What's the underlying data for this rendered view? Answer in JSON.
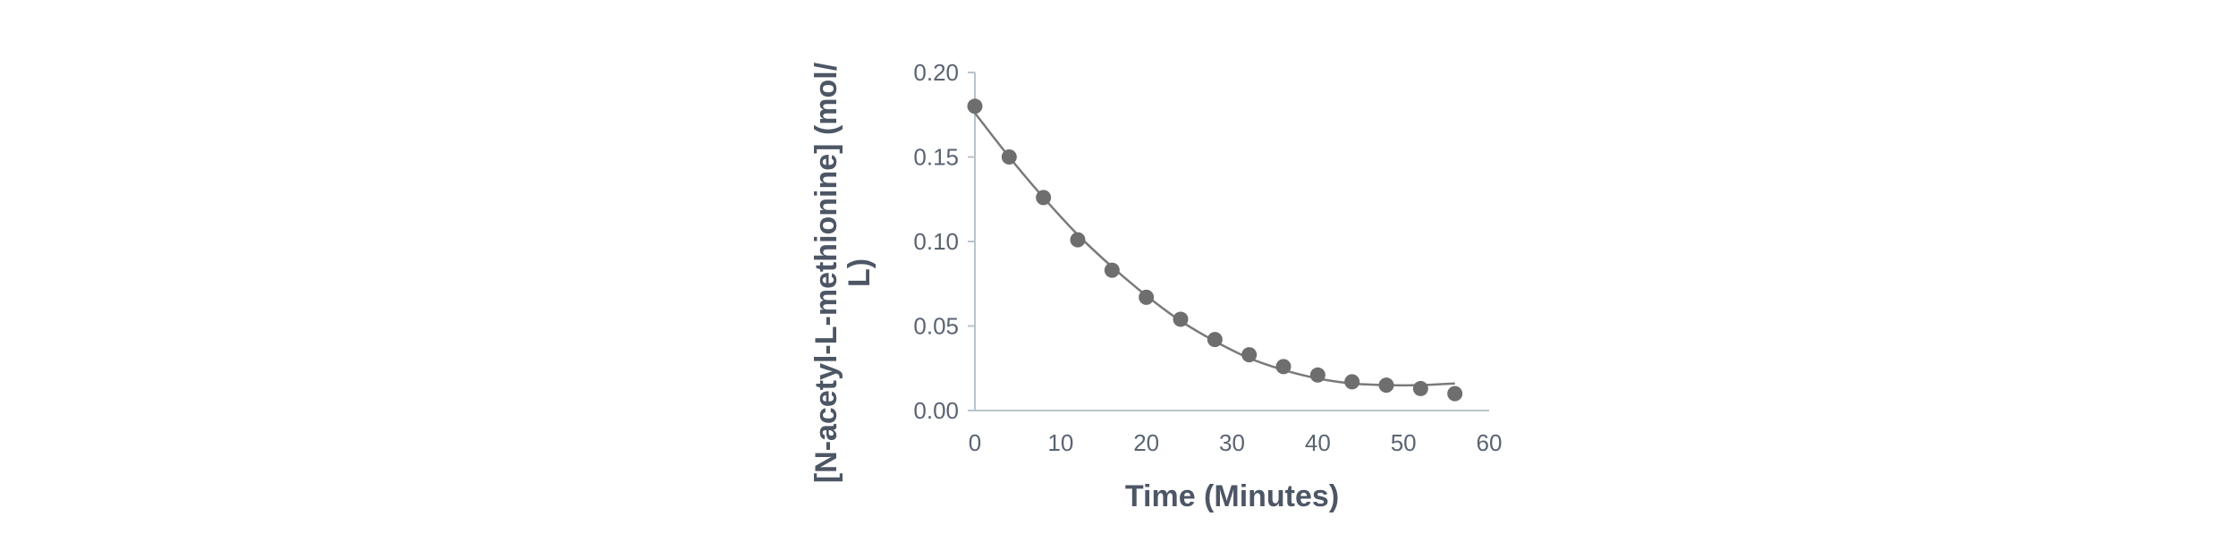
{
  "chart_data": {
    "type": "scatter",
    "xlabel": "Time (Minutes)",
    "ylabel_line1": "[N-acetyl-L-methionine] (mol/",
    "ylabel_line2": "L)",
    "xlim": [
      0,
      60
    ],
    "ylim": [
      0,
      0.2
    ],
    "x_ticks": [
      "0",
      "10",
      "20",
      "30",
      "40",
      "50",
      "60"
    ],
    "y_ticks": [
      "0.00",
      "0.05",
      "0.10",
      "0.15",
      "0.20"
    ],
    "grid": false,
    "legend": "none",
    "marker_color": "#6e6e6e",
    "line_color": "#7a7a7a",
    "series": [
      {
        "x": [
          0,
          4,
          8,
          12,
          16,
          20,
          24,
          28,
          32,
          36,
          40,
          44,
          48,
          52,
          56
        ],
        "y": [
          0.18,
          0.15,
          0.126,
          0.101,
          0.083,
          0.067,
          0.054,
          0.042,
          0.033,
          0.026,
          0.021,
          0.017,
          0.015,
          0.013,
          0.01
        ]
      }
    ],
    "trendline": {
      "x": [
        0,
        4,
        8,
        12,
        16,
        20,
        24,
        28,
        32,
        36,
        40,
        44,
        48,
        52,
        56
      ],
      "y": [
        0.176,
        0.15,
        0.126,
        0.104,
        0.085,
        0.068,
        0.053,
        0.041,
        0.031,
        0.024,
        0.019,
        0.016,
        0.015,
        0.015,
        0.016
      ]
    }
  }
}
